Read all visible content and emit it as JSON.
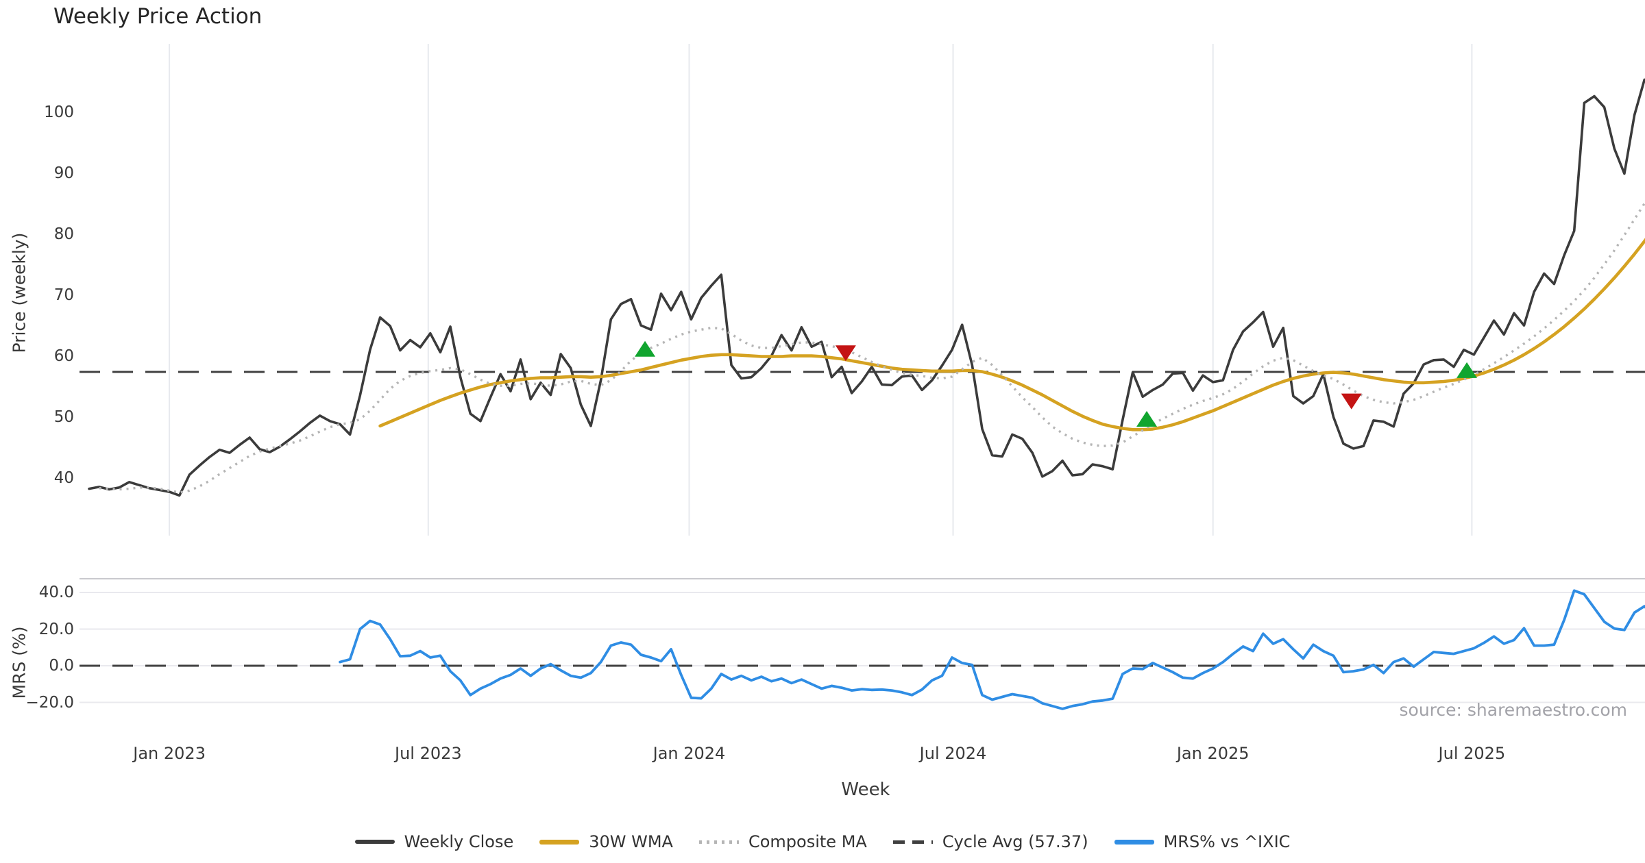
{
  "title": "Weekly Price Action",
  "source": "source: sharemaestro.com",
  "axes": {
    "price_label": "Price (weekly)",
    "mrs_label": "MRS (%)",
    "x_label": "Week"
  },
  "legend": [
    {
      "id": "weekly_close",
      "label": "Weekly Close"
    },
    {
      "id": "wma",
      "label": "30W WMA"
    },
    {
      "id": "composite",
      "label": "Composite MA"
    },
    {
      "id": "cycle_avg",
      "label": "Cycle Avg (57.37)"
    },
    {
      "id": "mrs",
      "label": "MRS% vs ^IXIC"
    }
  ],
  "colors": {
    "weekly_close": "#3b3b3b",
    "wma": "#d5a221",
    "composite": "#b5b5b5",
    "cycle_avg": "#414141",
    "mrs": "#2f8de4",
    "buy_marker": "#11a52f",
    "sell_marker": "#c41414",
    "gridline": "#e7e9ee"
  },
  "chart_data": {
    "type": "line",
    "x_unit": "week_index",
    "cycle_avg": 57.37,
    "price_axis": {
      "ticks": [
        100,
        90,
        80,
        70,
        60,
        50,
        40
      ],
      "range_shown": [
        36,
        107
      ]
    },
    "mrs_axis": {
      "ticks": [
        {
          "value": 40,
          "label": "40.0"
        },
        {
          "value": 20,
          "label": "20.0"
        },
        {
          "value": 0,
          "label": "0.0"
        },
        {
          "value": -20,
          "label": "−20.0"
        }
      ],
      "range_shown": [
        -26,
        44
      ]
    },
    "x_axis": {
      "label": "Week",
      "ticks": [
        {
          "week": 8.0,
          "label": "Jan 2023"
        },
        {
          "week": 33.8,
          "label": "Jul 2023"
        },
        {
          "week": 59.8,
          "label": "Jan 2024"
        },
        {
          "week": 86.1,
          "label": "Jul 2024"
        },
        {
          "week": 112.0,
          "label": "Jan 2025"
        },
        {
          "week": 137.8,
          "label": "Jul 2025"
        }
      ]
    },
    "series": [
      {
        "name": "Weekly Close",
        "panel": "price",
        "start_week": 0,
        "values": [
          38.2,
          38.5,
          38.1,
          38.4,
          39.3,
          38.8,
          38.3,
          38.0,
          37.7,
          37.1,
          40.5,
          42.0,
          43.4,
          44.6,
          44.1,
          45.4,
          46.6,
          44.7,
          44.2,
          45.1,
          46.3,
          47.6,
          49.0,
          50.2,
          49.3,
          48.8,
          47.1,
          53.5,
          61.0,
          66.3,
          64.9,
          60.9,
          62.6,
          61.4,
          63.7,
          60.6,
          64.8,
          56.5,
          50.5,
          49.3,
          53.2,
          57.0,
          54.2,
          59.4,
          52.9,
          55.6,
          53.6,
          60.3,
          58.0,
          52.0,
          48.5,
          56.0,
          66.0,
          68.5,
          69.3,
          65.0,
          64.3,
          70.2,
          67.5,
          70.5,
          66.0,
          69.5,
          71.5,
          73.3,
          58.5,
          56.3,
          56.5,
          58.0,
          60.0,
          63.4,
          60.9,
          64.7,
          61.5,
          62.3,
          56.5,
          58.2,
          53.9,
          55.8,
          58.2,
          55.3,
          55.2,
          56.6,
          56.8,
          54.4,
          56.0,
          58.4,
          61.0,
          65.1,
          58.5,
          48.0,
          43.7,
          43.5,
          47.1,
          46.4,
          44.1,
          40.2,
          41.1,
          42.8,
          40.4,
          40.6,
          42.2,
          41.9,
          41.4,
          49.5,
          57.3,
          53.3,
          54.4,
          55.3,
          57.1,
          57.2,
          54.3,
          56.8,
          55.7,
          56.0,
          61.0,
          64.0,
          65.5,
          67.2,
          61.5,
          64.6,
          53.4,
          52.2,
          53.4,
          57.0,
          50.0,
          45.6,
          44.8,
          45.2,
          49.4,
          49.2,
          48.4,
          53.8,
          55.5,
          58.6,
          59.3,
          59.4,
          58.2,
          61.0,
          60.2,
          63.0,
          65.8,
          63.5,
          67.0,
          65.0,
          70.5,
          73.5,
          71.8,
          76.5,
          80.5,
          101.5,
          102.6,
          100.8,
          94.0,
          89.9,
          99.5,
          105.3,
          103.2
        ]
      },
      {
        "name": "30W WMA",
        "panel": "price",
        "start_week": 29,
        "values": [
          48.5,
          49.2,
          49.9,
          50.6,
          51.3,
          52.0,
          52.7,
          53.3,
          53.9,
          54.4,
          54.9,
          55.3,
          55.6,
          55.9,
          56.1,
          56.3,
          56.4,
          56.4,
          56.5,
          56.6,
          56.6,
          56.5,
          56.6,
          56.8,
          57.1,
          57.4,
          57.7,
          58.1,
          58.5,
          58.9,
          59.3,
          59.6,
          59.9,
          60.1,
          60.2,
          60.2,
          60.1,
          60.0,
          59.9,
          59.9,
          59.9,
          60.0,
          60.0,
          60.0,
          59.9,
          59.7,
          59.5,
          59.2,
          58.9,
          58.6,
          58.3,
          58.0,
          57.8,
          57.7,
          57.6,
          57.5,
          57.5,
          57.5,
          57.6,
          57.6,
          57.4,
          57.0,
          56.5,
          55.9,
          55.2,
          54.4,
          53.6,
          52.7,
          51.8,
          50.9,
          50.1,
          49.4,
          48.8,
          48.4,
          48.1,
          47.9,
          47.9,
          48.0,
          48.3,
          48.7,
          49.2,
          49.8,
          50.4,
          51.0,
          51.7,
          52.4,
          53.1,
          53.8,
          54.5,
          55.2,
          55.8,
          56.3,
          56.7,
          57.0,
          57.2,
          57.3,
          57.2,
          57.0,
          56.7,
          56.4,
          56.1,
          55.9,
          55.7,
          55.6,
          55.6,
          55.7,
          55.8,
          56.0,
          56.3,
          56.7,
          57.2,
          57.8,
          58.5,
          59.3,
          60.2,
          61.2,
          62.3,
          63.5,
          64.8,
          66.2,
          67.7,
          69.3,
          71.0,
          72.8,
          74.7,
          76.7,
          78.8,
          81.0
        ]
      },
      {
        "name": "Composite MA",
        "panel": "price",
        "start_week": 1,
        "values": [
          38.3,
          38.2,
          38.1,
          38.2,
          38.4,
          38.4,
          38.2,
          37.9,
          37.6,
          37.9,
          38.6,
          39.5,
          40.6,
          41.6,
          42.6,
          43.6,
          44.3,
          44.8,
          45.2,
          45.6,
          46.1,
          46.8,
          47.6,
          48.3,
          48.8,
          49.0,
          49.6,
          51.0,
          52.8,
          54.6,
          55.9,
          56.7,
          57.2,
          57.5,
          57.7,
          58.0,
          57.8,
          57.0,
          56.1,
          55.4,
          55.1,
          55.1,
          55.4,
          55.5,
          55.3,
          55.1,
          55.3,
          55.8,
          55.9,
          55.4,
          55.2,
          56.0,
          57.5,
          59.2,
          60.5,
          61.3,
          62.0,
          62.8,
          63.5,
          64.0,
          64.3,
          64.6,
          64.5,
          63.6,
          62.5,
          61.7,
          61.3,
          61.3,
          61.6,
          61.9,
          62.2,
          62.2,
          61.9,
          61.6,
          61.2,
          60.6,
          59.8,
          59.0,
          58.3,
          57.7,
          57.2,
          56.9,
          56.7,
          56.4,
          56.3,
          56.6,
          57.8,
          59.0,
          59.7,
          58.5,
          56.8,
          55.0,
          53.2,
          51.6,
          49.9,
          48.4,
          47.3,
          46.4,
          45.8,
          45.4,
          45.2,
          45.3,
          45.8,
          46.8,
          47.8,
          48.8,
          49.7,
          50.5,
          51.3,
          52.0,
          52.6,
          53.1,
          53.7,
          54.6,
          55.8,
          57.1,
          58.3,
          59.2,
          59.7,
          59.3,
          58.4,
          57.5,
          56.8,
          56.2,
          55.3,
          54.3,
          53.4,
          52.8,
          52.4,
          52.2,
          52.4,
          52.8,
          53.4,
          54.1,
          54.8,
          55.4,
          56.1,
          56.9,
          57.8,
          58.8,
          59.8,
          60.9,
          62.0,
          63.2,
          64.5,
          65.9,
          67.4,
          69.0,
          70.8,
          72.8,
          75.0,
          77.3,
          79.8,
          82.4,
          85.0,
          86.8
        ]
      },
      {
        "name": "MRS% vs ^IXIC",
        "panel": "mrs",
        "start_week": 25,
        "values": [
          2.0,
          3.5,
          20.0,
          24.5,
          22.5,
          14.5,
          5.2,
          5.5,
          8.0,
          4.5,
          5.5,
          -3.0,
          -8.0,
          -16.0,
          -12.5,
          -10.0,
          -7.0,
          -5.0,
          -1.5,
          -5.5,
          -1.5,
          0.9,
          -2.5,
          -5.5,
          -6.5,
          -4.0,
          2.0,
          11.0,
          12.7,
          11.5,
          6.0,
          4.5,
          2.5,
          9.0,
          -5.0,
          -17.5,
          -17.8,
          -12.5,
          -4.5,
          -7.5,
          -5.5,
          -8.0,
          -6.0,
          -8.5,
          -7.0,
          -9.5,
          -7.5,
          -10.0,
          -12.5,
          -11.0,
          -12.0,
          -13.5,
          -12.8,
          -13.2,
          -13.0,
          -13.5,
          -14.5,
          -16.0,
          -13.0,
          -8.0,
          -5.5,
          4.5,
          1.5,
          0.5,
          -16.0,
          -18.5,
          -17.0,
          -15.5,
          -16.5,
          -17.5,
          -20.5,
          -22.0,
          -23.5,
          -22.0,
          -21.0,
          -19.5,
          -19.0,
          -18.0,
          -4.5,
          -1.5,
          -1.8,
          1.5,
          -1.0,
          -3.5,
          -6.5,
          -7.0,
          -4.0,
          -1.5,
          2.0,
          6.5,
          10.5,
          8.0,
          17.5,
          12.0,
          14.5,
          9.0,
          4.0,
          11.5,
          8.0,
          5.5,
          -3.5,
          -3.0,
          -2.0,
          0.5,
          -4.0,
          2.0,
          4.0,
          -0.5,
          3.5,
          7.5,
          7.0,
          6.5,
          8.0,
          9.5,
          12.5,
          16.0,
          12.0,
          14.0,
          20.5,
          11.0,
          11.0,
          11.5,
          25.0,
          41.0,
          39.0,
          31.5,
          24.0,
          20.3,
          19.5,
          29.0,
          32.5,
          26.7
        ]
      }
    ],
    "signals": [
      {
        "week": 55.4,
        "price": 61.0,
        "type": "buy"
      },
      {
        "week": 75.4,
        "price": 60.6,
        "type": "sell"
      },
      {
        "week": 105.4,
        "price": 49.5,
        "type": "buy"
      },
      {
        "week": 125.8,
        "price": 52.7,
        "type": "sell"
      },
      {
        "week": 137.3,
        "price": 57.5,
        "type": "buy"
      }
    ]
  }
}
